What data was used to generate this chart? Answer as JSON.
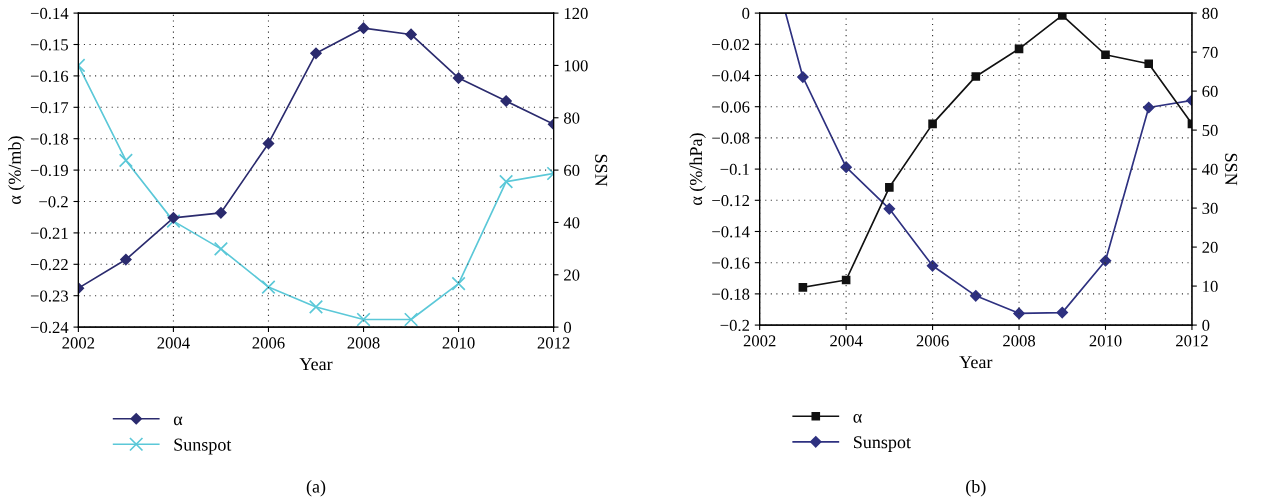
{
  "chart_data": [
    {
      "type": "line",
      "xlabel": "Year",
      "ylabel": "α (%/mb)",
      "y2label": "SSN",
      "x": [
        2002,
        2003,
        2004,
        2005,
        2006,
        2007,
        2008,
        2009,
        2010,
        2011,
        2012
      ],
      "xlim": [
        2002,
        2012
      ],
      "xticks": [
        2002,
        2004,
        2006,
        2008,
        2010,
        2012
      ],
      "ylim": [
        -0.24,
        -0.14
      ],
      "yticks": [
        {
          "value": -0.24,
          "label": "−0.24"
        },
        {
          "value": -0.23,
          "label": "−0.23"
        },
        {
          "value": -0.22,
          "label": "−0.22"
        },
        {
          "value": -0.21,
          "label": "−0.21"
        },
        {
          "value": -0.2,
          "label": "−0.2"
        },
        {
          "value": -0.19,
          "label": "−0.19"
        },
        {
          "value": -0.18,
          "label": "−0.18"
        },
        {
          "value": -0.17,
          "label": "−0.17"
        },
        {
          "value": -0.16,
          "label": "−0.16"
        },
        {
          "value": -0.15,
          "label": "−0.15"
        },
        {
          "value": -0.14,
          "label": "−0.14"
        }
      ],
      "y2lim": [
        0,
        120
      ],
      "y2ticks": [
        0,
        20,
        40,
        60,
        80,
        100,
        120
      ],
      "grid": true,
      "legend": "bottom left",
      "line_style": "solid",
      "series": [
        {
          "name": "α",
          "color": "#2b2b6e",
          "marker": "diamond",
          "values": [
            -0.2276,
            -0.2185,
            -0.2052,
            -0.2036,
            -0.1815,
            -0.1528,
            -0.1448,
            -0.1468,
            -0.1607,
            -0.168,
            -0.1754
          ]
        },
        {
          "name": "Sunspot",
          "color": "#5bc8d8",
          "marker": "cross",
          "axis": "y2",
          "values": [
            100,
            63.7,
            40.5,
            29.9,
            15.3,
            7.7,
            2.9,
            2.9,
            16.6,
            55.6,
            58.7
          ]
        }
      ],
      "annotations": [
        "(a)"
      ]
    },
    {
      "type": "line",
      "xlabel": "Year",
      "ylabel": "α (%/hPa)",
      "y2label": "SSN",
      "xlim": [
        2002,
        2012
      ],
      "xticks": [
        2002,
        2004,
        2006,
        2008,
        2010,
        2012
      ],
      "ylim": [
        -0.2,
        0
      ],
      "yticks": [
        {
          "value": -0.2,
          "label": "−0.2"
        },
        {
          "value": -0.18,
          "label": "−0.18"
        },
        {
          "value": -0.16,
          "label": "−0.16"
        },
        {
          "value": -0.14,
          "label": "−0.14"
        },
        {
          "value": -0.12,
          "label": "−0.12"
        },
        {
          "value": -0.1,
          "label": "−0.1"
        },
        {
          "value": -0.08,
          "label": "−0.08"
        },
        {
          "value": -0.06,
          "label": "−0.06"
        },
        {
          "value": -0.04,
          "label": "−0.04"
        },
        {
          "value": -0.02,
          "label": "−0.02"
        },
        0
      ],
      "y2lim": [
        0,
        80
      ],
      "y2ticks": [
        0,
        10,
        20,
        30,
        40,
        50,
        60,
        70,
        80
      ],
      "grid": true,
      "legend": "bottom left",
      "line_style": "solid",
      "series": [
        {
          "name": "α",
          "color": "#111111",
          "marker": "square",
          "x": [
            2003,
            2004,
            2005,
            2006,
            2007,
            2008,
            2009,
            2010,
            2011,
            2012
          ],
          "values": [
            -0.1758,
            -0.1711,
            -0.1117,
            -0.071,
            -0.0406,
            -0.0229,
            -0.0015,
            -0.0267,
            -0.0325,
            -0.071
          ]
        },
        {
          "name": "Sunspot",
          "color": "#2e3180",
          "marker": "diamond",
          "axis": "y2",
          "x": [
            2002.6,
            2003,
            2004,
            2005,
            2006,
            2007,
            2008,
            2009,
            2010,
            2011,
            2012
          ],
          "values": [
            80,
            63.6,
            40.5,
            29.8,
            15.2,
            7.5,
            3.0,
            3.2,
            16.5,
            55.8,
            57.6
          ]
        }
      ],
      "annotations": [
        "(b)"
      ]
    }
  ]
}
